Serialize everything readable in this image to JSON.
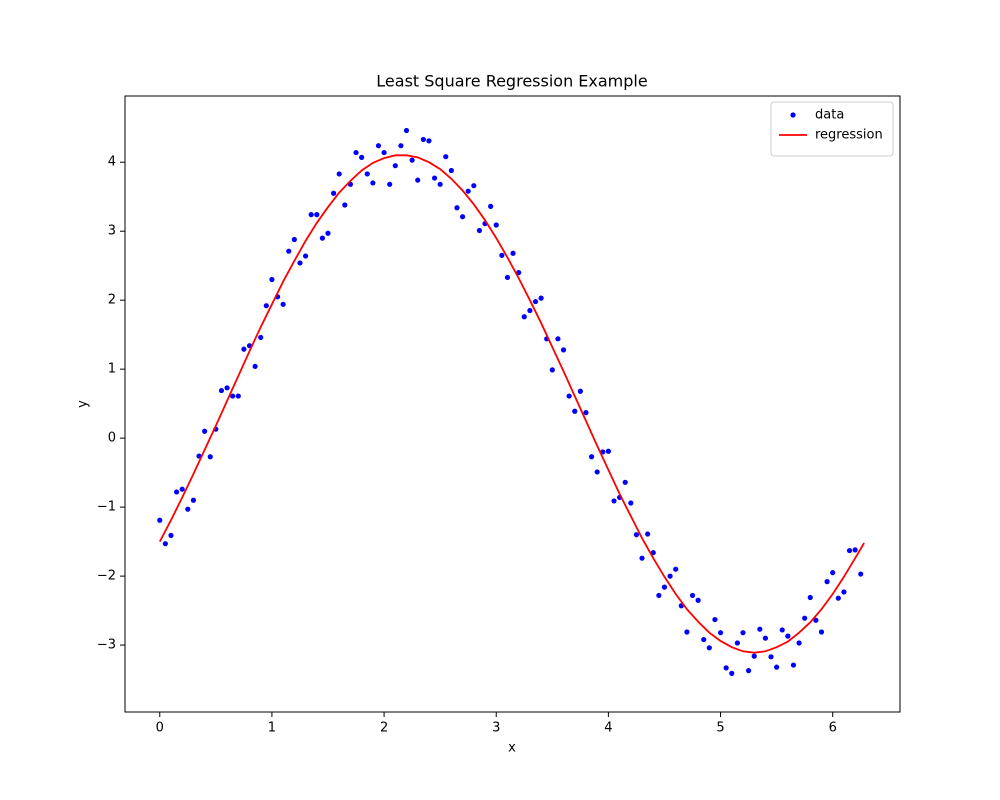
{
  "chart_data": {
    "type": "scatter",
    "title": "Least Square Regression Example",
    "xlabel": "x",
    "ylabel": "y",
    "xlim": [
      -0.31,
      6.6
    ],
    "ylim": [
      -3.97,
      4.96
    ],
    "xticks": [
      0,
      1,
      2,
      3,
      4,
      5,
      6
    ],
    "yticks": [
      {
        "value": -3,
        "label": "−3"
      },
      {
        "value": -2,
        "label": "−2"
      },
      {
        "value": -1,
        "label": "−1"
      },
      0,
      1,
      2,
      3,
      4
    ],
    "grid": false,
    "legend": "upper right",
    "series": [
      {
        "name": "data",
        "type": "scatter",
        "color": "#0000ff",
        "x": [
          0,
          0.05,
          0.1,
          0.15,
          0.2,
          0.25,
          0.3,
          0.35,
          0.4,
          0.45,
          0.5,
          0.55,
          0.6,
          0.65,
          0.7,
          0.75,
          0.8,
          0.85,
          0.9,
          0.95,
          1,
          1.05,
          1.1,
          1.15,
          1.2,
          1.25,
          1.3,
          1.35,
          1.4,
          1.45,
          1.5,
          1.55,
          1.6,
          1.65,
          1.7,
          1.75,
          1.8,
          1.85,
          1.9,
          1.95,
          2,
          2.05,
          2.1,
          2.15,
          2.2,
          2.25,
          2.3,
          2.35,
          2.4,
          2.45,
          2.5,
          2.55,
          2.6,
          2.65,
          2.7,
          2.75,
          2.8,
          2.85,
          2.9,
          2.95,
          3,
          3.05,
          3.1,
          3.15,
          3.2,
          3.25,
          3.3,
          3.35,
          3.4,
          3.45,
          3.5,
          3.55,
          3.6,
          3.65,
          3.7,
          3.75,
          3.8,
          3.85,
          3.9,
          3.95,
          4,
          4.05,
          4.1,
          4.15,
          4.2,
          4.25,
          4.3,
          4.35,
          4.4,
          4.45,
          4.5,
          4.55,
          4.6,
          4.65,
          4.7,
          4.75,
          4.8,
          4.85,
          4.9,
          4.95,
          5,
          5.05,
          5.1,
          5.15,
          5.2,
          5.25,
          5.3,
          5.35,
          5.4,
          5.45,
          5.5,
          5.55,
          5.6,
          5.65,
          5.7,
          5.75,
          5.8,
          5.85,
          5.9,
          5.95,
          6,
          6.05,
          6.1,
          6.15,
          6.2,
          6.25
        ],
        "values": [
          -1.19,
          -1.53,
          -1.41,
          -0.78,
          -0.74,
          -1.03,
          -0.9,
          -0.26,
          0.1,
          -0.27,
          0.13,
          0.69,
          0.73,
          0.61,
          0.61,
          1.29,
          1.34,
          1.04,
          1.46,
          1.92,
          2.3,
          2.05,
          1.94,
          2.71,
          2.88,
          2.54,
          2.64,
          3.24,
          3.24,
          2.9,
          2.97,
          3.55,
          3.83,
          3.38,
          3.68,
          4.14,
          4.07,
          3.83,
          3.7,
          4.24,
          4.14,
          3.68,
          3.95,
          4.24,
          4.46,
          4.03,
          3.74,
          4.33,
          4.31,
          3.77,
          3.68,
          4.08,
          3.88,
          3.34,
          3.21,
          3.58,
          3.66,
          3.01,
          3.11,
          3.36,
          3.09,
          2.65,
          2.33,
          2.68,
          2.4,
          1.76,
          1.85,
          1.98,
          2.03,
          1.44,
          0.99,
          1.44,
          1.28,
          0.61,
          0.39,
          0.68,
          0.37,
          -0.27,
          -0.49,
          -0.2,
          -0.19,
          -0.91,
          -0.86,
          -0.64,
          -0.94,
          -1.4,
          -1.74,
          -1.39,
          -1.66,
          -2.28,
          -2.16,
          -2,
          -1.9,
          -2.43,
          -2.81,
          -2.28,
          -2.35,
          -2.92,
          -3.04,
          -2.63,
          -2.82,
          -3.33,
          -3.41,
          -2.97,
          -2.82,
          -3.37,
          -3.16,
          -2.77,
          -2.9,
          -3.17,
          -3.32,
          -2.78,
          -2.87,
          -3.29,
          -2.97,
          -2.61,
          -2.31,
          -2.64,
          -2.81,
          -2.08,
          -1.95,
          -2.32,
          -2.23,
          -1.63,
          -1.62,
          -1.97
        ]
      },
      {
        "name": "regression",
        "type": "line",
        "color": "#ff0000",
        "x": [
          0,
          0.1,
          0.2,
          0.3,
          0.4,
          0.5,
          0.6,
          0.7,
          0.8,
          0.9,
          1,
          1.1,
          1.2,
          1.3,
          1.4,
          1.5,
          1.6,
          1.7,
          1.8,
          1.9,
          2,
          2.1,
          2.2,
          2.3,
          2.4,
          2.5,
          2.6,
          2.7,
          2.8,
          2.9,
          3,
          3.1,
          3.2,
          3.3,
          3.4,
          3.5,
          3.6,
          3.7,
          3.8,
          3.9,
          4,
          4.1,
          4.2,
          4.3,
          4.4,
          4.5,
          4.6,
          4.7,
          4.8,
          4.9,
          5,
          5.1,
          5.2,
          5.3,
          5.4,
          5.5,
          5.6,
          5.7,
          5.8,
          5.9,
          6,
          6.1,
          6.2,
          6.28
        ],
        "values": [
          -1.5,
          -1.19,
          -0.86,
          -0.52,
          -0.17,
          0.18,
          0.54,
          0.9,
          1.26,
          1.61,
          1.94,
          2.27,
          2.57,
          2.86,
          3.12,
          3.35,
          3.56,
          3.73,
          3.88,
          3.99,
          4.06,
          4.1,
          4.1,
          4.07,
          4,
          3.9,
          3.76,
          3.59,
          3.39,
          3.16,
          2.9,
          2.62,
          2.32,
          2,
          1.67,
          1.32,
          0.97,
          0.61,
          0.25,
          -0.11,
          -0.46,
          -0.81,
          -1.13,
          -1.45,
          -1.74,
          -2.01,
          -2.26,
          -2.48,
          -2.66,
          -2.82,
          -2.94,
          -3.03,
          -3.09,
          -3.11,
          -3.09,
          -3.03,
          -2.95,
          -2.82,
          -2.67,
          -2.48,
          -2.26,
          -2.01,
          -1.74,
          -1.52
        ]
      }
    ]
  }
}
